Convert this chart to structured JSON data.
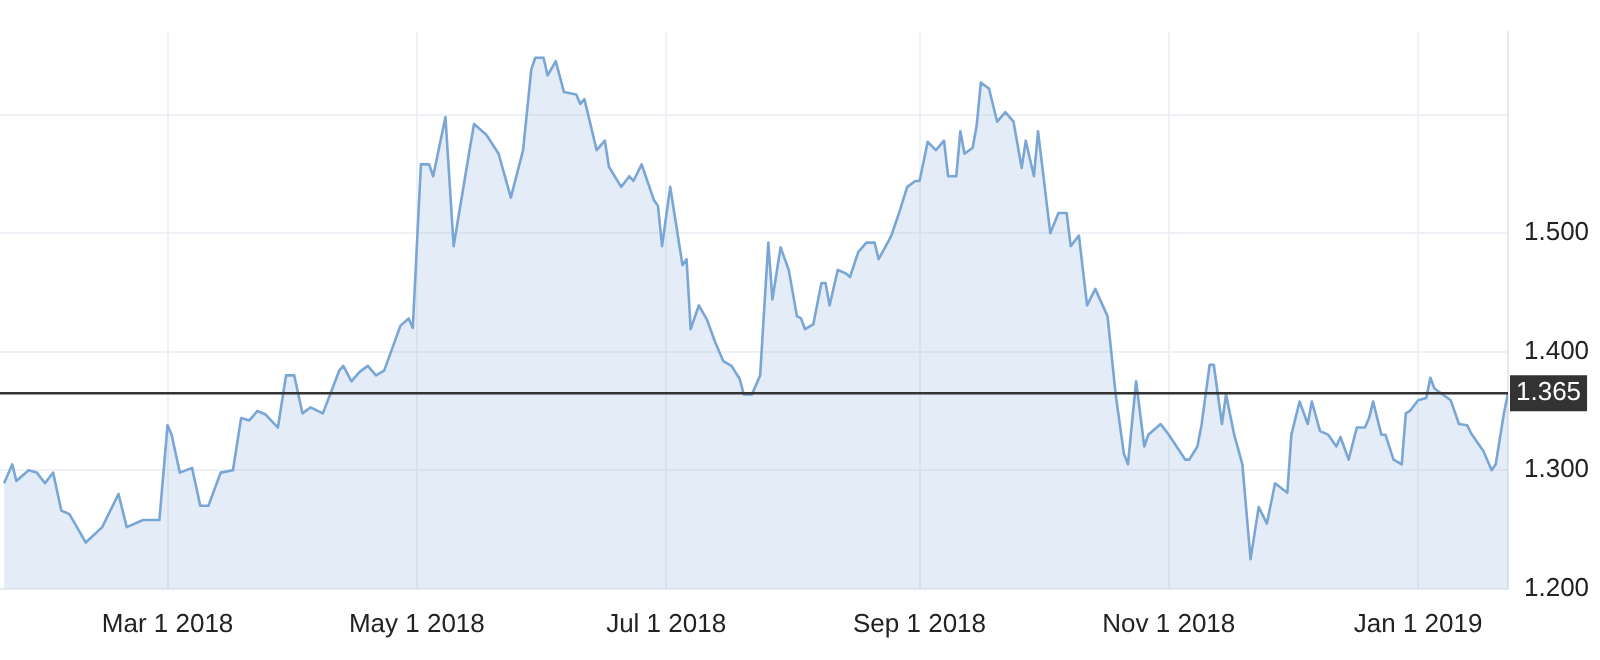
{
  "chart_data": {
    "type": "area",
    "legend": false,
    "grid": true,
    "marker": "none",
    "line_style": "solid",
    "xlim": [
      "2018-01-19",
      "2019-01-23"
    ],
    "xticks": [
      {
        "value": "2018-03-01",
        "label": "Mar 1 2018"
      },
      {
        "value": "2018-05-01",
        "label": "May 1 2018"
      },
      {
        "value": "2018-07-01",
        "label": "Jul 1 2018"
      },
      {
        "value": "2018-09-01",
        "label": "Sep 1 2018"
      },
      {
        "value": "2018-11-01",
        "label": "Nov 1 2018"
      },
      {
        "value": "2019-01-01",
        "label": "Jan 1 2019"
      }
    ],
    "ylim": [
      1.2,
      1.67
    ],
    "yticks": [
      {
        "value": 1.2,
        "label": "1.200"
      },
      {
        "value": 1.3,
        "label": "1.300"
      },
      {
        "value": 1.4,
        "label": "1.400"
      },
      {
        "value": 1.5,
        "label": "1.500"
      },
      {
        "value": 1.6,
        "label": null
      }
    ],
    "ref_lines": [
      {
        "axis": "y",
        "value": 1.365,
        "label": "1.365",
        "color": "#333333"
      }
    ],
    "x": [
      "2018-01-20",
      "2018-01-22",
      "2018-01-23",
      "2018-01-26",
      "2018-01-28",
      "2018-01-30",
      "2018-02-01",
      "2018-02-03",
      "2018-02-05",
      "2018-02-09",
      "2018-02-13",
      "2018-02-17",
      "2018-02-19",
      "2018-02-23",
      "2018-02-27",
      "2018-03-01",
      "2018-03-02",
      "2018-03-04",
      "2018-03-07",
      "2018-03-09",
      "2018-03-11",
      "2018-03-14",
      "2018-03-17",
      "2018-03-19",
      "2018-03-21",
      "2018-03-23",
      "2018-03-25",
      "2018-03-28",
      "2018-03-30",
      "2018-04-01",
      "2018-04-03",
      "2018-04-05",
      "2018-04-08",
      "2018-04-12",
      "2018-04-13",
      "2018-04-15",
      "2018-04-17",
      "2018-04-19",
      "2018-04-21",
      "2018-04-23",
      "2018-04-27",
      "2018-04-29",
      "2018-04-30",
      "2018-05-02",
      "2018-05-04",
      "2018-05-05",
      "2018-05-08",
      "2018-05-10",
      "2018-05-14",
      "2018-05-15",
      "2018-05-18",
      "2018-05-21",
      "2018-05-24",
      "2018-05-27",
      "2018-05-29",
      "2018-05-30",
      "2018-06-01",
      "2018-06-02",
      "2018-06-04",
      "2018-06-06",
      "2018-06-09",
      "2018-06-10",
      "2018-06-11",
      "2018-06-14",
      "2018-06-16",
      "2018-06-17",
      "2018-06-20",
      "2018-06-22",
      "2018-06-23",
      "2018-06-25",
      "2018-06-26",
      "2018-06-28",
      "2018-06-29",
      "2018-06-30",
      "2018-07-02",
      "2018-07-03",
      "2018-07-05",
      "2018-07-06",
      "2018-07-07",
      "2018-07-09",
      "2018-07-11",
      "2018-07-13",
      "2018-07-15",
      "2018-07-17",
      "2018-07-19",
      "2018-07-20",
      "2018-07-22",
      "2018-07-24",
      "2018-07-26",
      "2018-07-27",
      "2018-07-29",
      "2018-07-31",
      "2018-08-02",
      "2018-08-03",
      "2018-08-04",
      "2018-08-06",
      "2018-08-08",
      "2018-08-09",
      "2018-08-10",
      "2018-08-12",
      "2018-08-14",
      "2018-08-15",
      "2018-08-17",
      "2018-08-19",
      "2018-08-21",
      "2018-08-22",
      "2018-08-25",
      "2018-08-27",
      "2018-08-29",
      "2018-08-31",
      "2018-09-01",
      "2018-09-03",
      "2018-09-05",
      "2018-09-07",
      "2018-09-08",
      "2018-09-10",
      "2018-09-11",
      "2018-09-12",
      "2018-09-14",
      "2018-09-15",
      "2018-09-16",
      "2018-09-18",
      "2018-09-20",
      "2018-09-22",
      "2018-09-24",
      "2018-09-26",
      "2018-09-27",
      "2018-09-29",
      "2018-09-30",
      "2018-10-03",
      "2018-10-05",
      "2018-10-07",
      "2018-10-08",
      "2018-10-10",
      "2018-10-12",
      "2018-10-14",
      "2018-10-17",
      "2018-10-19",
      "2018-10-21",
      "2018-10-22",
      "2018-10-24",
      "2018-10-26",
      "2018-10-27",
      "2018-10-30",
      "2018-11-01",
      "2018-11-05",
      "2018-11-06",
      "2018-11-08",
      "2018-11-09",
      "2018-11-11",
      "2018-11-12",
      "2018-11-14",
      "2018-11-15",
      "2018-11-17",
      "2018-11-19",
      "2018-11-21",
      "2018-11-23",
      "2018-11-25",
      "2018-11-27",
      "2018-11-30",
      "2018-12-01",
      "2018-12-03",
      "2018-12-05",
      "2018-12-06",
      "2018-12-08",
      "2018-12-10",
      "2018-12-12",
      "2018-12-13",
      "2018-12-15",
      "2018-12-17",
      "2018-12-19",
      "2018-12-20",
      "2018-12-21",
      "2018-12-23",
      "2018-12-24",
      "2018-12-26",
      "2018-12-28",
      "2018-12-29",
      "2018-12-30",
      "2019-01-01",
      "2019-01-03",
      "2019-01-04",
      "2019-01-05",
      "2019-01-09",
      "2019-01-11",
      "2019-01-13",
      "2019-01-14",
      "2019-01-17",
      "2019-01-19",
      "2019-01-20",
      "2019-01-22",
      "2019-01-23"
    ],
    "series": [
      {
        "color": "#7aa6d6",
        "values": [
          1.289,
          1.305,
          1.291,
          1.3,
          1.298,
          1.289,
          1.298,
          1.266,
          1.263,
          1.239,
          1.252,
          1.28,
          1.252,
          1.258,
          1.258,
          1.338,
          1.33,
          1.298,
          1.302,
          1.27,
          1.27,
          1.298,
          1.3,
          1.344,
          1.342,
          1.35,
          1.347,
          1.336,
          1.38,
          1.38,
          1.348,
          1.353,
          1.348,
          1.384,
          1.388,
          1.375,
          1.383,
          1.388,
          1.38,
          1.384,
          1.422,
          1.428,
          1.42,
          1.558,
          1.558,
          1.548,
          1.598,
          1.489,
          1.572,
          1.592,
          1.583,
          1.567,
          1.53,
          1.57,
          1.638,
          1.648,
          1.648,
          1.633,
          1.645,
          1.619,
          1.617,
          1.609,
          1.613,
          1.57,
          1.578,
          1.556,
          1.539,
          1.548,
          1.544,
          1.558,
          1.548,
          1.528,
          1.523,
          1.489,
          1.539,
          1.517,
          1.473,
          1.478,
          1.419,
          1.439,
          1.427,
          1.408,
          1.392,
          1.388,
          1.377,
          1.364,
          1.364,
          1.38,
          1.492,
          1.444,
          1.488,
          1.469,
          1.43,
          1.428,
          1.419,
          1.423,
          1.458,
          1.458,
          1.439,
          1.469,
          1.466,
          1.463,
          1.484,
          1.492,
          1.492,
          1.478,
          1.497,
          1.517,
          1.539,
          1.544,
          1.544,
          1.577,
          1.57,
          1.578,
          1.548,
          1.548,
          1.586,
          1.567,
          1.572,
          1.591,
          1.627,
          1.622,
          1.594,
          1.602,
          1.594,
          1.555,
          1.578,
          1.548,
          1.586,
          1.5,
          1.517,
          1.517,
          1.489,
          1.498,
          1.439,
          1.453,
          1.43,
          1.364,
          1.314,
          1.305,
          1.375,
          1.32,
          1.33,
          1.339,
          1.33,
          1.309,
          1.309,
          1.32,
          1.338,
          1.389,
          1.389,
          1.339,
          1.364,
          1.33,
          1.305,
          1.225,
          1.269,
          1.255,
          1.289,
          1.281,
          1.33,
          1.358,
          1.339,
          1.358,
          1.333,
          1.33,
          1.32,
          1.328,
          1.309,
          1.336,
          1.336,
          1.344,
          1.358,
          1.33,
          1.33,
          1.309,
          1.305,
          1.348,
          1.35,
          1.359,
          1.361,
          1.378,
          1.369,
          1.359,
          1.339,
          1.338,
          1.331,
          1.316,
          1.3,
          1.305,
          1.348,
          1.365
        ]
      }
    ]
  }
}
